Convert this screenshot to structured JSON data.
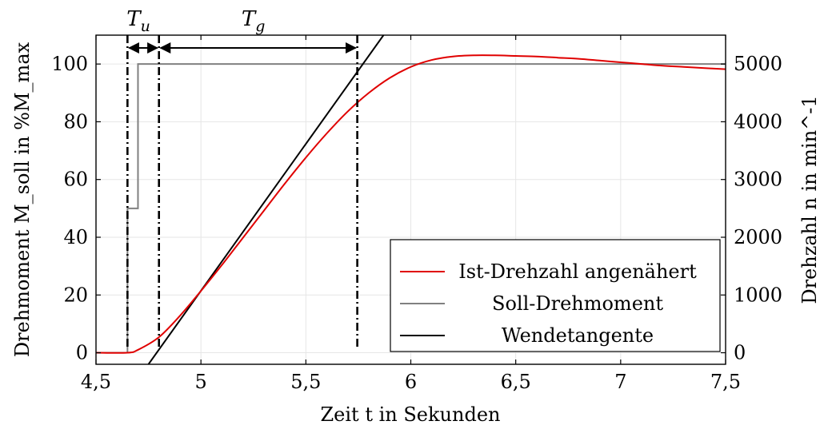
{
  "chart_data": {
    "type": "line",
    "xlabel": "Zeit t in Sekunden",
    "ylabel_left": "Drehmoment M_soll in %M_max",
    "ylabel_right": "Drehzahl n in min^-1",
    "xlim": [
      4.5,
      7.5
    ],
    "ylim_left": [
      -4,
      110
    ],
    "ylim_right": [
      -200,
      5500
    ],
    "x_ticks": [
      4.5,
      5,
      5.5,
      6,
      6.5,
      7,
      7.5
    ],
    "x_tick_labels": [
      "4,5",
      "5",
      "5,5",
      "6",
      "6,5",
      "7",
      "7,5"
    ],
    "y_left_ticks": [
      0,
      20,
      40,
      60,
      80,
      100
    ],
    "y_left_tick_labels": [
      "0",
      "20",
      "40",
      "60",
      "80",
      "100"
    ],
    "y_right_ticks": [
      0,
      1000,
      2000,
      3000,
      4000,
      5000
    ],
    "y_right_tick_labels": [
      "0",
      "1000",
      "2000",
      "3000",
      "4000",
      "5000"
    ],
    "grid": true,
    "legend_position": "bottom-right",
    "series": [
      {
        "name": "Ist-Drehzahl angenähert",
        "axis": "right",
        "color": "#e00000",
        "x": [
          4.5,
          4.65,
          4.7,
          4.8,
          4.9,
          5.0,
          5.1,
          5.2,
          5.3,
          5.4,
          5.5,
          5.6,
          5.7,
          5.8,
          5.9,
          6.0,
          6.1,
          6.2,
          6.3,
          6.4,
          6.5,
          6.6,
          6.7,
          6.8,
          6.9,
          7.0,
          7.1,
          7.2,
          7.3,
          7.4,
          7.5
        ],
        "y": [
          0,
          0,
          50,
          270,
          640,
          1070,
          1520,
          1990,
          2460,
          2930,
          3380,
          3800,
          4180,
          4500,
          4760,
          4950,
          5070,
          5130,
          5150,
          5150,
          5140,
          5130,
          5110,
          5090,
          5060,
          5030,
          5000,
          4970,
          4950,
          4930,
          4910
        ]
      },
      {
        "name": "Soll-Drehmoment",
        "axis": "left",
        "color": "#808080",
        "x": [
          4.5,
          4.65,
          4.65,
          4.7,
          4.7,
          7.5
        ],
        "y": [
          0,
          0,
          50,
          50,
          100,
          100
        ]
      },
      {
        "name": "Wendetangente",
        "axis": "right",
        "color": "#000000",
        "x": [
          4.75,
          5.87
        ],
        "y": [
          -200,
          5500
        ]
      }
    ],
    "annotations": [
      {
        "text": "T_u",
        "from_x": 4.65,
        "to_x": 4.8
      },
      {
        "text": "T_g",
        "from_x": 4.8,
        "to_x": 5.745
      }
    ],
    "vertical_markers_x": [
      4.65,
      4.8,
      5.745
    ]
  }
}
